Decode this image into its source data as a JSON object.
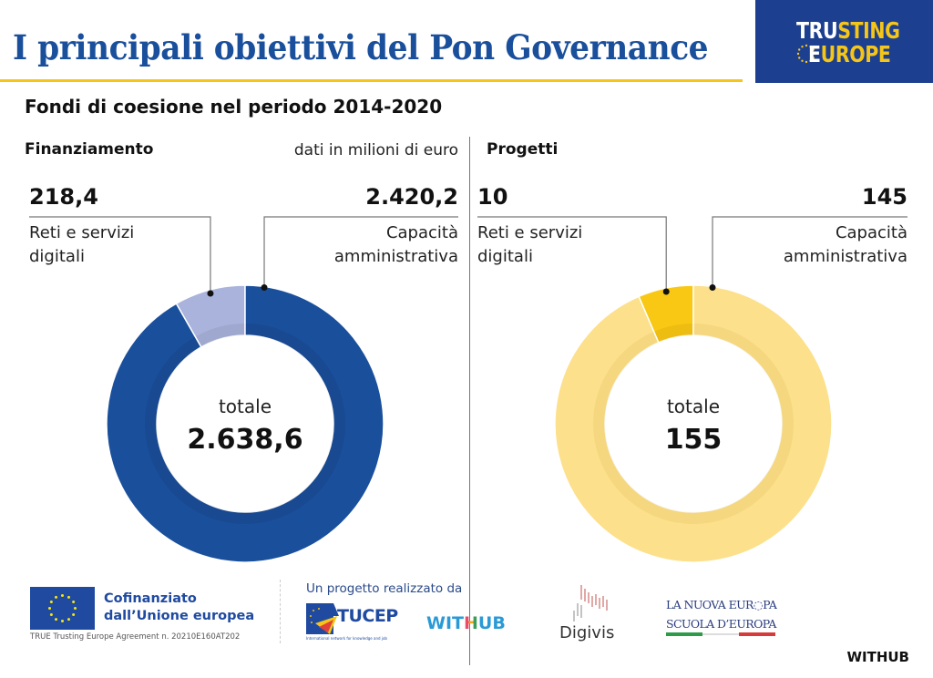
{
  "header": {
    "title": "I principali obiettivi del Pon Governance",
    "brand_line1_white": "TRU",
    "brand_line1_yellow": "STING",
    "brand_line2_white": "E",
    "brand_line2_yellow": "UROPE"
  },
  "subtitle": "Fondi di coesione nel periodo 2014-2020",
  "colors": {
    "title_blue": "#1a4f9c",
    "accent_yellow": "#f5c518",
    "fin_major": "#1a4f9c",
    "fin_minor": "#a9b3dc",
    "proj_major": "#fde08b",
    "proj_minor": "#f9c814"
  },
  "chart_data": [
    {
      "type": "pie",
      "variant": "donut",
      "title": "Finanziamento",
      "note": "dati in milioni di euro",
      "categories": [
        "Reti e servizi digitali",
        "Capacità amministrativa"
      ],
      "values": [
        218.4,
        2420.2
      ],
      "value_labels": [
        "218,4",
        "2.420,2"
      ],
      "total_label": "totale",
      "total": 2638.6,
      "total_display": "2.638,6",
      "legend": "callouts-top"
    },
    {
      "type": "pie",
      "variant": "donut",
      "title": "Progetti",
      "categories": [
        "Reti e servizi digitali",
        "Capacità amministrativa"
      ],
      "values": [
        10,
        145
      ],
      "value_labels": [
        "10",
        "145"
      ],
      "total_label": "totale",
      "total": 155,
      "total_display": "155",
      "legend": "callouts-top"
    }
  ],
  "labels": {
    "fin_left_line1": "Reti e servizi",
    "fin_left_line2": "digitali",
    "fin_right_line1": "Capacità",
    "fin_right_line2": "amministrativa",
    "proj_left_line1": "Reti e servizi",
    "proj_left_line2": "digitali",
    "proj_right_line1": "Capacità",
    "proj_right_line2": "amministrativa"
  },
  "footer": {
    "eu_line1": "Cofinanziato",
    "eu_line2": "dall’Unione europea",
    "agreement": "TRUE Trusting Europe Agreement n. 20210E160AT202",
    "made_by": "Un progetto realizzato da",
    "tucep": "TUCEP",
    "tucep_tagline": "International network for knowledge and job",
    "withub_color": "WITHUB",
    "digivis": "Digivis",
    "lne_line1": "LA NUOVA EUR◌PA",
    "lne_line2": "SCUOLA D’EUROPA",
    "withub_black": "WITHUB"
  }
}
